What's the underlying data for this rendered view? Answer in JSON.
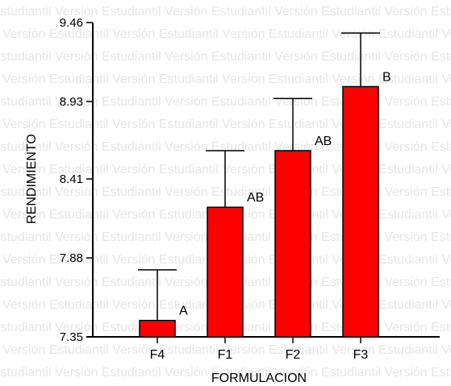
{
  "watermark": {
    "text": "Versión Estudiantil"
  },
  "chart_data": {
    "type": "bar",
    "title": "",
    "xlabel": "FORMULACION",
    "ylabel": "RENDIMIENTO",
    "ylim": [
      7.35,
      9.46
    ],
    "yticks": [
      "7.35",
      "7.88",
      "8.41",
      "8.93",
      "9.46"
    ],
    "categories": [
      "F4",
      "F1",
      "F2",
      "F3"
    ],
    "values": [
      7.46,
      8.22,
      8.6,
      9.03
    ],
    "error_upper": [
      7.8,
      8.6,
      8.95,
      9.39
    ],
    "significance": [
      "A",
      "AB",
      "AB",
      "B"
    ],
    "bar_color": "#ff0000",
    "grid": false,
    "legend": "none"
  }
}
